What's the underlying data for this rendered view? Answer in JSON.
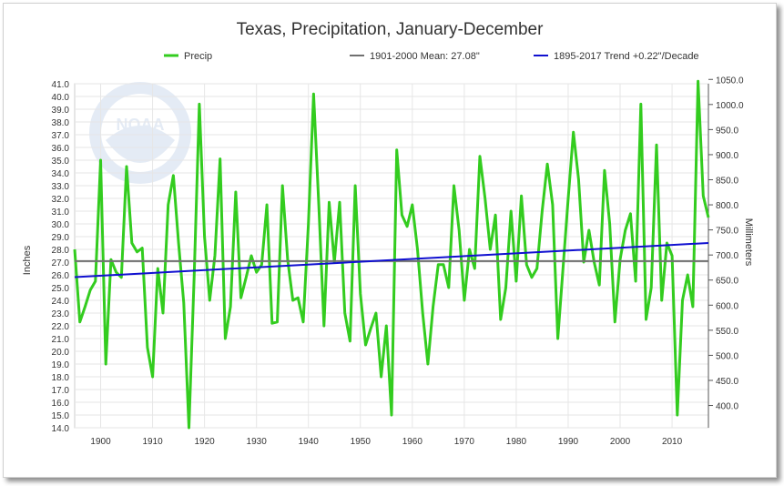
{
  "chart_data": {
    "type": "line",
    "title": "Texas, Precipitation, January-December",
    "ylabel": "Inches",
    "y2label": "Millimeters",
    "xlim": [
      1895,
      2017
    ],
    "ylim": [
      14.0,
      41.0
    ],
    "y2lim": [
      355.6,
      1041.4
    ],
    "x_ticks": [
      "1900",
      "1910",
      "1920",
      "1930",
      "1940",
      "1950",
      "1960",
      "1970",
      "1980",
      "1990",
      "2000",
      "2010"
    ],
    "y_ticks": [
      "14.0",
      "15.0",
      "16.0",
      "17.0",
      "18.0",
      "19.0",
      "20.0",
      "21.0",
      "22.0",
      "23.0",
      "24.0",
      "25.0",
      "26.0",
      "27.0",
      "28.0",
      "29.0",
      "30.0",
      "31.0",
      "32.0",
      "33.0",
      "34.0",
      "35.0",
      "36.0",
      "37.0",
      "38.0",
      "39.0",
      "40.0",
      "41.0"
    ],
    "y2_ticks": [
      "400.0",
      "450.0",
      "500.0",
      "550.0",
      "600.0",
      "650.0",
      "700.0",
      "750.0",
      "800.0",
      "850.0",
      "900.0",
      "950.0",
      "1000.0",
      "1050.0"
    ],
    "grid": true,
    "legend_position": "top",
    "legend": {
      "precip": "Precip",
      "mean": "1901-2000 Mean: 27.08\"",
      "trend": "1895-2017 Trend +0.22\"/Decade"
    },
    "series": [
      {
        "name": "Precip",
        "color": "#33cc1f",
        "x": [
          1895,
          1896,
          1897,
          1898,
          1899,
          1900,
          1901,
          1902,
          1903,
          1904,
          1905,
          1906,
          1907,
          1908,
          1909,
          1910,
          1911,
          1912,
          1913,
          1914,
          1915,
          1916,
          1917,
          1918,
          1919,
          1920,
          1921,
          1922,
          1923,
          1924,
          1925,
          1926,
          1927,
          1928,
          1929,
          1930,
          1931,
          1932,
          1933,
          1934,
          1935,
          1936,
          1937,
          1938,
          1939,
          1940,
          1941,
          1942,
          1943,
          1944,
          1945,
          1946,
          1947,
          1948,
          1949,
          1950,
          1951,
          1952,
          1953,
          1954,
          1955,
          1956,
          1957,
          1958,
          1959,
          1960,
          1961,
          1962,
          1963,
          1964,
          1965,
          1966,
          1967,
          1968,
          1969,
          1970,
          1971,
          1972,
          1973,
          1974,
          1975,
          1976,
          1977,
          1978,
          1979,
          1980,
          1981,
          1982,
          1983,
          1984,
          1985,
          1986,
          1987,
          1988,
          1989,
          1990,
          1991,
          1992,
          1993,
          1994,
          1995,
          1996,
          1997,
          1998,
          1999,
          2000,
          2001,
          2002,
          2003,
          2004,
          2005,
          2006,
          2007,
          2008,
          2009,
          2010,
          2011,
          2012,
          2013,
          2014,
          2015,
          2016,
          2017
        ],
        "values": [
          28.0,
          22.3,
          23.5,
          24.8,
          25.5,
          35.0,
          19.0,
          27.2,
          26.2,
          25.8,
          34.5,
          28.5,
          27.8,
          28.1,
          20.3,
          18.0,
          26.5,
          23.0,
          31.5,
          33.8,
          28.5,
          23.8,
          14.0,
          25.8,
          39.4,
          29.0,
          24.0,
          27.5,
          35.1,
          21.0,
          23.5,
          32.5,
          24.2,
          25.8,
          27.5,
          26.2,
          26.8,
          31.5,
          22.2,
          22.3,
          33.0,
          27.2,
          24.0,
          24.2,
          22.3,
          30.0,
          40.2,
          31.5,
          22.0,
          31.7,
          27.0,
          31.7,
          23.0,
          20.8,
          33.0,
          24.5,
          20.5,
          21.8,
          23.0,
          18.0,
          22.0,
          15.0,
          35.8,
          30.7,
          29.8,
          31.5,
          28.0,
          23.0,
          19.0,
          23.5,
          26.8,
          26.8,
          25.0,
          33.0,
          29.5,
          24.0,
          28.0,
          26.5,
          35.3,
          32.0,
          28.0,
          30.7,
          22.5,
          25.0,
          31.0,
          25.5,
          32.2,
          26.8,
          25.8,
          26.5,
          31.0,
          34.7,
          31.5,
          21.0,
          26.5,
          32.0,
          37.2,
          33.5,
          27.0,
          29.5,
          27.0,
          25.2,
          34.2,
          30.0,
          22.3,
          27.2,
          29.5,
          30.8,
          25.5,
          39.4,
          22.5,
          25.0,
          36.2,
          24.0,
          28.5,
          27.5,
          15.0,
          24.0,
          26.0,
          23.5,
          41.2,
          32.2,
          30.5
        ]
      },
      {
        "name": "1901-2000 Mean: 27.08\"",
        "color": "#707070",
        "x": [
          1895,
          2017
        ],
        "values": [
          27.08,
          27.08
        ]
      },
      {
        "name": "1895-2017 Trend +0.22\"/Decade",
        "color": "#1010d0",
        "x": [
          1895,
          2017
        ],
        "values": [
          25.82,
          28.5
        ]
      }
    ]
  }
}
